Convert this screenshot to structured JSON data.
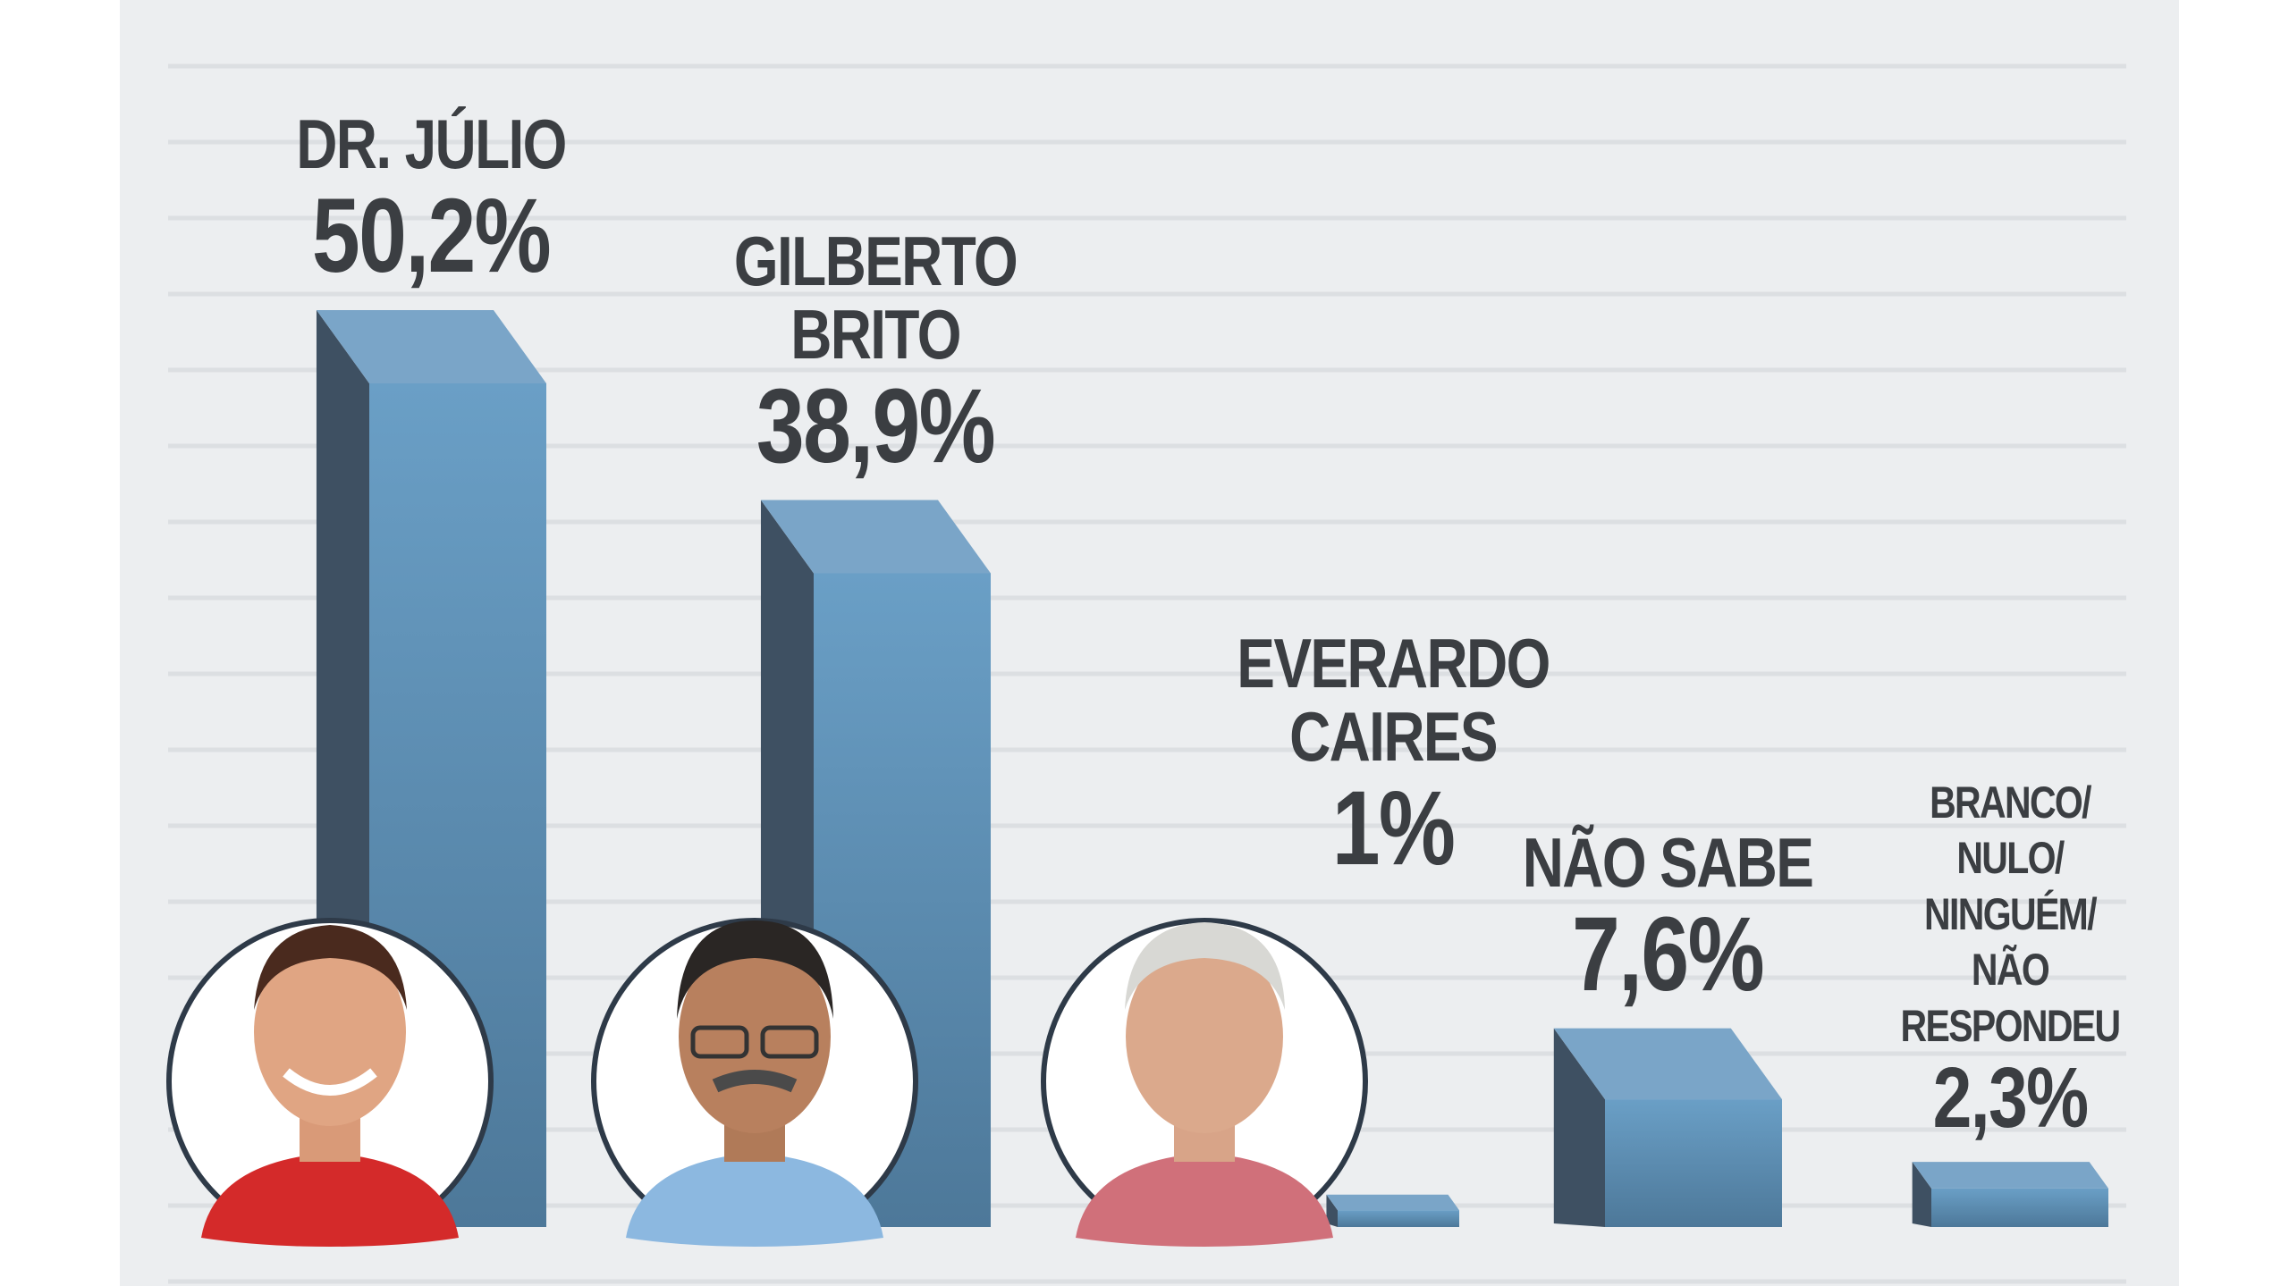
{
  "chart_data": {
    "type": "bar3d",
    "categories": [
      "DR. JÚLIO",
      "GILBERTO BRITO",
      "EVERARDO CAIRES",
      "NÃO SABE",
      "BRANCO/ NULO/ NINGUÉM/ NÃO RESPONDEU"
    ],
    "values": [
      50.2,
      38.9,
      1,
      7.6,
      2.3
    ],
    "value_labels": [
      "50,2%",
      "38,9%",
      "1%",
      "7,6%",
      "2,3%"
    ],
    "color": "#5b8fb5"
  }
}
